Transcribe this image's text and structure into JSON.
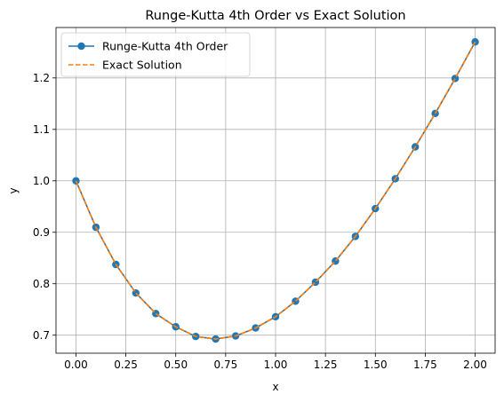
{
  "chart_data": {
    "type": "line",
    "title": "Runge-Kutta 4th Order vs Exact Solution",
    "xlabel": "x",
    "ylabel": "y",
    "xlim": [
      -0.1,
      2.1
    ],
    "ylim": [
      0.665,
      1.298
    ],
    "xticks": [
      "0.00",
      "0.25",
      "0.50",
      "0.75",
      "1.00",
      "1.25",
      "1.50",
      "1.75",
      "2.00"
    ],
    "xtick_values": [
      0,
      0.25,
      0.5,
      0.75,
      1.0,
      1.25,
      1.5,
      1.75,
      2.0
    ],
    "yticks": [
      "0.7",
      "0.8",
      "0.9",
      "1.0",
      "1.1",
      "1.2"
    ],
    "ytick_values": [
      0.7,
      0.8,
      0.9,
      1.0,
      1.1,
      1.2
    ],
    "grid": true,
    "legend_position": "top-left",
    "x": [
      0.0,
      0.1,
      0.2,
      0.3,
      0.4,
      0.5,
      0.6,
      0.7,
      0.8,
      0.9,
      1.0,
      1.1,
      1.2,
      1.3,
      1.4,
      1.5,
      1.6,
      1.7,
      1.8,
      1.9,
      2.0
    ],
    "series": [
      {
        "name": "Runge-Kutta 4th Order",
        "style": "solid-marker",
        "color": "#1f77b4",
        "values": [
          1.0,
          0.9097,
          0.8375,
          0.782,
          0.742,
          0.7163,
          0.6975,
          0.6925,
          0.6985,
          0.714,
          0.7358,
          0.766,
          0.803,
          0.844,
          0.892,
          0.946,
          1.004,
          1.066,
          1.131,
          1.199,
          1.27
        ]
      },
      {
        "name": "Exact Solution",
        "style": "dashed",
        "color": "#ff7f0e",
        "values": [
          1.0,
          0.9097,
          0.8375,
          0.782,
          0.742,
          0.7163,
          0.6975,
          0.6925,
          0.6985,
          0.714,
          0.7358,
          0.766,
          0.803,
          0.844,
          0.892,
          0.946,
          1.004,
          1.066,
          1.131,
          1.199,
          1.27
        ]
      }
    ]
  }
}
